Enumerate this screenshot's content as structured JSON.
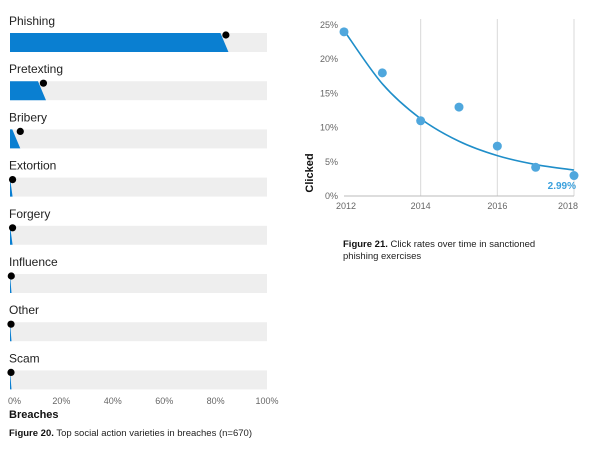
{
  "colors": {
    "bar": "#0a7fd1",
    "track": "#eeeeee",
    "dot": "#000000",
    "line": "#1f8ec9",
    "point": "#4fa7dd",
    "grid": "#d9d9d9",
    "annotation": "#3aa0dd"
  },
  "chart_data": [
    {
      "type": "bar",
      "orientation": "horizontal",
      "categories": [
        "Phishing",
        "Pretexting",
        "Bribery",
        "Extortion",
        "Forgery",
        "Influence",
        "Other",
        "Scam"
      ],
      "values": [
        85,
        14,
        4,
        1,
        1,
        0.5,
        0.3,
        0.3
      ],
      "dots": [
        84,
        13,
        4,
        1,
        1,
        0.5,
        0.3,
        0.3
      ],
      "xticks": [
        "0%",
        "20%",
        "40%",
        "60%",
        "80%",
        "100%"
      ],
      "xlim": [
        0,
        100
      ],
      "xlabel": "Breaches",
      "caption_bold": "Figure 20.",
      "caption_text": " Top social action varieties in breaches (n=670)"
    },
    {
      "type": "scatter",
      "x": [
        2012,
        2013,
        2014,
        2015,
        2016,
        2017,
        2018
      ],
      "y": [
        24,
        18,
        11,
        13,
        7.3,
        4.2,
        2.99
      ],
      "trend": [
        24.2,
        16.4,
        11.3,
        8.0,
        5.9,
        4.6,
        3.8
      ],
      "xticks": [
        "2012",
        "2014",
        "2016",
        "2018"
      ],
      "yticks": [
        "0%",
        "5%",
        "10%",
        "15%",
        "20%",
        "25%"
      ],
      "xlim": [
        2012,
        2018
      ],
      "ylim": [
        0,
        25
      ],
      "ylabel": "Clicked",
      "annotation": "2.99%",
      "grid": "vertical",
      "caption_bold": "Figure 21.",
      "caption_text": " Click rates over time in sanctioned",
      "caption_text2": "phishing exercises"
    }
  ]
}
